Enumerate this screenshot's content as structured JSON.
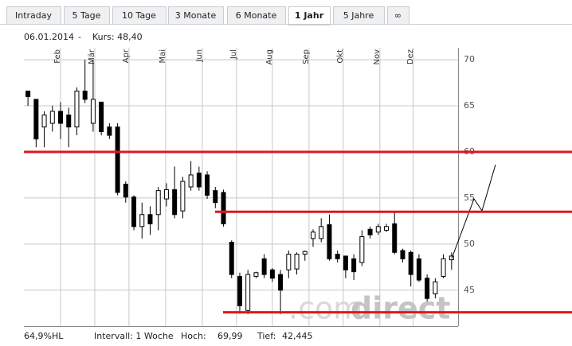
{
  "tabs": [
    "Intraday",
    "5 Tage",
    "10 Tage",
    "3 Monate",
    "6 Monate",
    "1 Jahr",
    "5 Jahre",
    "∞"
  ],
  "active_tab": "1 Jahr",
  "header": {
    "date": "06.01.2014",
    "separator": "-",
    "quote": "Kurs: 48,40"
  },
  "watermark": {
    "prefix": ".com",
    "brand": "direct"
  },
  "footer": {
    "range": "64,9%HL",
    "interval": "Intervall: 1 Woche",
    "high_label": "Hoch:",
    "high": "69,99",
    "low_label": "Tief:",
    "low": "42,445"
  },
  "chart_data": {
    "type": "candlestick",
    "x": [
      0,
      1,
      2,
      3,
      4,
      5,
      6,
      7,
      8,
      9,
      10,
      11,
      12,
      13,
      14,
      15,
      16,
      17,
      18,
      19,
      20,
      21,
      22,
      23,
      24,
      25,
      26,
      27,
      28,
      29,
      30,
      31,
      32,
      33,
      34,
      35,
      36,
      37,
      38,
      39,
      40,
      41,
      42,
      43,
      44,
      45,
      46,
      47,
      48,
      49,
      50,
      51,
      52
    ],
    "open": [
      66.6,
      65.7,
      62.7,
      63.1,
      64.4,
      64.0,
      62.7,
      66.6,
      63.1,
      65.4,
      62.7,
      62.7,
      56.5,
      55.1,
      51.9,
      53.2,
      53.2,
      54.9,
      55.9,
      53.6,
      56.2,
      57.7,
      57.5,
      55.8,
      55.6,
      50.2,
      46.5,
      42.8,
      46.5,
      48.4,
      47.2,
      46.7,
      47.2,
      47.3,
      48.9,
      50.6,
      50.6,
      52.1,
      48.9,
      48.7,
      48.4,
      48.0,
      51.6,
      51.3,
      51.5,
      52.2,
      49.3,
      49.1,
      48.4,
      46.3,
      44.6,
      46.5,
      48.3
    ],
    "high": [
      66.6,
      65.7,
      64.4,
      65.0,
      65.4,
      64.8,
      67.0,
      70.0,
      69.99,
      65.4,
      63.1,
      63.1,
      56.8,
      55.3,
      54.5,
      54.1,
      56.2,
      56.6,
      58.4,
      57.3,
      59.0,
      58.4,
      57.9,
      56.2,
      55.9,
      50.4,
      46.9,
      47.2,
      47.0,
      48.9,
      47.4,
      47.2,
      49.3,
      49.1,
      49.3,
      51.6,
      52.8,
      53.2,
      49.3,
      48.7,
      48.9,
      51.5,
      51.9,
      52.2,
      52.2,
      53.6,
      49.5,
      49.3,
      48.9,
      46.7,
      46.3,
      48.9,
      49.1
    ],
    "low": [
      65.0,
      60.5,
      60.5,
      62.2,
      61.4,
      60.5,
      61.8,
      65.3,
      62.2,
      61.8,
      61.4,
      55.3,
      54.5,
      51.5,
      50.6,
      51.0,
      51.5,
      54.1,
      52.8,
      52.8,
      55.8,
      55.8,
      54.9,
      53.9,
      51.9,
      46.3,
      42.445,
      42.4,
      46.3,
      46.3,
      45.9,
      42.4,
      46.3,
      46.7,
      48.2,
      49.7,
      50.2,
      48.2,
      48.0,
      46.3,
      46.1,
      47.6,
      50.6,
      51.0,
      51.3,
      48.9,
      48.0,
      45.4,
      45.9,
      43.7,
      44.1,
      46.3,
      47.2
    ],
    "close": [
      66.0,
      61.4,
      64.0,
      64.4,
      63.1,
      62.7,
      66.6,
      65.7,
      65.7,
      62.2,
      61.8,
      55.6,
      55.1,
      51.9,
      53.2,
      52.2,
      55.8,
      55.9,
      53.2,
      56.8,
      57.5,
      56.2,
      55.3,
      54.5,
      52.2,
      46.7,
      43.3,
      46.7,
      46.9,
      46.7,
      46.3,
      45.0,
      48.9,
      48.9,
      49.2,
      51.3,
      51.9,
      48.4,
      48.4,
      47.2,
      47.0,
      50.8,
      51.0,
      51.9,
      51.9,
      49.1,
      48.4,
      46.7,
      46.1,
      44.1,
      45.9,
      48.4,
      48.7
    ],
    "up_color": "#ffffff",
    "down_color": "#000000",
    "xlim": [
      -0.5,
      52.8
    ],
    "xticks": [
      {
        "value": 4.0,
        "label": "Feb"
      },
      {
        "value": 8.2,
        "label": "Mär"
      },
      {
        "value": 12.4,
        "label": "Apr"
      },
      {
        "value": 16.9,
        "label": "Mai"
      },
      {
        "value": 21.4,
        "label": "Jun"
      },
      {
        "value": 25.6,
        "label": "Jul"
      },
      {
        "value": 30.0,
        "label": "Aug"
      },
      {
        "value": 34.5,
        "label": "Sep"
      },
      {
        "value": 38.7,
        "label": "Okt"
      },
      {
        "value": 43.2,
        "label": "Nov"
      },
      {
        "value": 47.3,
        "label": "Dez"
      }
    ],
    "ylim": [
      41.1,
      71.3
    ],
    "yticks": [
      45,
      50,
      55,
      60,
      65,
      70
    ],
    "grid": true,
    "levels": [
      {
        "value": 60,
        "color": "#e0161e"
      },
      {
        "value": 53.5,
        "color": "#e0161e"
      },
      {
        "value": 42.6,
        "color": "#e0161e"
      }
    ]
  }
}
